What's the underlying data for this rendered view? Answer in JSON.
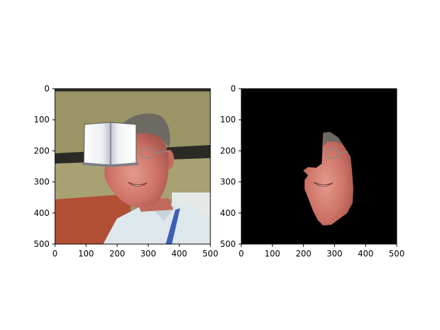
{
  "panels": [
    {
      "name": "original-image",
      "x_ticks": [
        "0",
        "100",
        "200",
        "300",
        "400",
        "500"
      ],
      "y_ticks": [
        "0",
        "100",
        "200",
        "300",
        "400",
        "500"
      ],
      "contents": "photo of smiling man with glasses and a white book icon occluding the upper-left face"
    },
    {
      "name": "segmented-face",
      "x_ticks": [
        "0",
        "100",
        "200",
        "300",
        "400",
        "500"
      ],
      "y_ticks": [
        "0",
        "100",
        "200",
        "300",
        "400",
        "500"
      ],
      "contents": "black background with only the face region visible"
    }
  ],
  "colors": {
    "wall": "#9a9466",
    "dark_band": "#2b2a24",
    "floor": "#b04f34",
    "shirt": "#dfe9ee",
    "lanyard": "#3d5fb4",
    "skin": "#d07a70",
    "hair": "#6d6a63",
    "mask_bg": "#000000"
  },
  "icons": [
    "book-icon"
  ]
}
